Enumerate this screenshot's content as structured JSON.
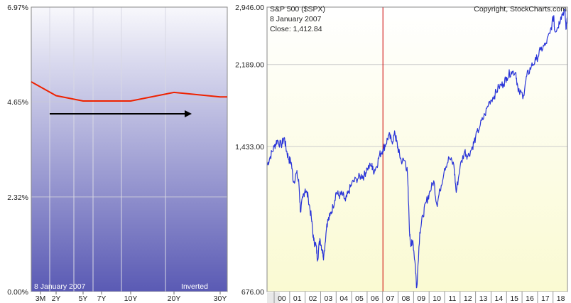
{
  "chart_data": [
    {
      "type": "line",
      "title": "",
      "xlabel": "",
      "ylabel": "",
      "categories": [
        "3M",
        "2Y",
        "5Y",
        "7Y",
        "10Y",
        "20Y",
        "30Y"
      ],
      "x_years": [
        0.25,
        2,
        5,
        7,
        10,
        20,
        30
      ],
      "series": [
        {
          "values": [
            5.14,
            4.8,
            4.67,
            4.67,
            4.67,
            4.88,
            4.77
          ]
        }
      ],
      "ylim": [
        0.0,
        6.97
      ],
      "yticks": [
        0.0,
        2.32,
        4.65,
        6.97
      ],
      "ytick_labels": [
        "0.00%",
        "2.32%",
        "4.65%",
        "6.97%"
      ],
      "grid": true,
      "annotations": {
        "date": "8  January 2007",
        "state": "Inverted"
      },
      "colors": {
        "curve": "#ee2200",
        "arrow": "#000000",
        "fill_top": "#f8f8fc",
        "fill_bottom": "#5a5ab4"
      }
    },
    {
      "type": "line",
      "title": "S&P 500 ($SPX)",
      "copyright": "Copyright, StockCharts.com",
      "xlabel": "",
      "ylabel": "",
      "scale": "log",
      "x_tick_labels": [
        "00",
        "01",
        "02",
        "03",
        "04",
        "05",
        "06",
        "07",
        "08",
        "09",
        "10",
        "11",
        "12",
        "13",
        "14",
        "15",
        "16",
        "17",
        "18"
      ],
      "xlim": [
        1999.54,
        2018.93
      ],
      "ylim": [
        676.0,
        2946.0
      ],
      "yticks": [
        676.0,
        1433.0,
        2189.0,
        2946.0
      ],
      "ytick_labels": [
        "676.00",
        "1,433.00",
        "2,189.00",
        "2,946.00"
      ],
      "grid": true,
      "marker": {
        "x": 2007.02,
        "date": "8  January 2007",
        "close": "Close: 1,412.84"
      },
      "series": [
        {
          "x": [
            1999.55,
            1999.75,
            2000.0,
            2000.2,
            2000.45,
            2000.65,
            2000.8,
            2000.95,
            2001.1,
            2001.25,
            2001.45,
            2001.6,
            2001.7,
            2001.85,
            2002.0,
            2002.2,
            2002.4,
            2002.55,
            2002.7,
            2002.8,
            2002.95,
            2003.1,
            2003.2,
            2003.4,
            2003.6,
            2003.8,
            2004.0,
            2004.2,
            2004.4,
            2004.6,
            2004.8,
            2005.0,
            2005.3,
            2005.6,
            2005.8,
            2006.0,
            2006.3,
            2006.4,
            2006.6,
            2006.8,
            2007.02,
            2007.2,
            2007.4,
            2007.6,
            2007.8,
            2007.9,
            2008.05,
            2008.2,
            2008.45,
            2008.6,
            2008.75,
            2008.85,
            2008.95,
            2009.1,
            2009.2,
            2009.4,
            2009.6,
            2009.8,
            2010.0,
            2010.3,
            2010.5,
            2010.7,
            2011.0,
            2011.3,
            2011.6,
            2011.75,
            2012.0,
            2012.3,
            2012.5,
            2012.8,
            2013.0,
            2013.3,
            2013.6,
            2013.9,
            2014.2,
            2014.5,
            2014.8,
            2015.0,
            2015.3,
            2015.6,
            2015.75,
            2016.1,
            2016.3,
            2016.6,
            2016.9,
            2017.2,
            2017.5,
            2017.8,
            2018.05,
            2018.1,
            2018.3,
            2018.5,
            2018.75,
            2018.85,
            2018.93
          ],
          "values": [
            1300,
            1360,
            1430,
            1480,
            1440,
            1500,
            1400,
            1340,
            1320,
            1190,
            1250,
            1180,
            1020,
            1100,
            1150,
            1100,
            990,
            880,
            860,
            800,
            890,
            840,
            810,
            960,
            1000,
            1050,
            1130,
            1110,
            1120,
            1080,
            1130,
            1180,
            1210,
            1230,
            1230,
            1280,
            1300,
            1260,
            1290,
            1370,
            1412,
            1450,
            1520,
            1470,
            1530,
            1470,
            1390,
            1330,
            1330,
            1250,
            900,
            860,
            880,
            780,
            690,
            920,
            1000,
            1070,
            1120,
            1200,
            1060,
            1140,
            1280,
            1350,
            1300,
            1130,
            1290,
            1400,
            1360,
            1430,
            1500,
            1600,
            1690,
            1810,
            1860,
            1950,
            1980,
            2050,
            2110,
            2100,
            1900,
            1870,
            2060,
            2170,
            2240,
            2360,
            2420,
            2570,
            2820,
            2620,
            2650,
            2800,
            2910,
            2630,
            2900
          ]
        }
      ],
      "colors": {
        "line": "#2a35d8",
        "marker": "#cc0000",
        "fill_top": "#ffffff",
        "fill_bottom": "#fafad2"
      }
    }
  ]
}
